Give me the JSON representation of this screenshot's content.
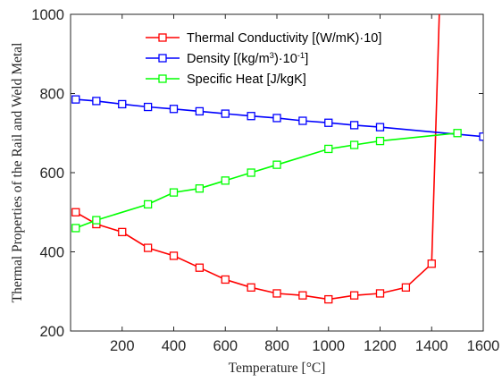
{
  "chart_data": {
    "type": "line",
    "xlabel": "Temperature [°C]",
    "ylabel": "Thermal Properties of the Rail and Weld Metal",
    "xlim": [
      0,
      1600
    ],
    "ylim": [
      200,
      1000
    ],
    "xticks": [
      200,
      400,
      600,
      800,
      1000,
      1200,
      1400,
      1600
    ],
    "yticks": [
      200,
      400,
      600,
      800,
      1000
    ],
    "grid": false,
    "legend_position": "top-right",
    "series": [
      {
        "name": "Thermal Conductivity [(W/mK)·10]",
        "legend_parts": [
          {
            "t": "Thermal Conductivity [(W/mK)·10]"
          }
        ],
        "color": "#ff0000",
        "marker": "square",
        "x": [
          20,
          100,
          200,
          300,
          400,
          500,
          600,
          700,
          800,
          900,
          1000,
          1100,
          1200,
          1300,
          1400
        ],
        "y": [
          500,
          470,
          450,
          410,
          390,
          360,
          330,
          310,
          295,
          290,
          280,
          290,
          295,
          310,
          370
        ],
        "continuation_line": {
          "x": [
            1400,
            1430
          ],
          "y": [
            370,
            1000
          ]
        }
      },
      {
        "name": "Density [(kg/m3)·10-1]",
        "legend_parts": [
          {
            "t": "Density [(kg/m"
          },
          {
            "t": "3",
            "sup": true
          },
          {
            "t": ")·10"
          },
          {
            "t": "-1",
            "sup": true
          },
          {
            "t": "]"
          }
        ],
        "color": "#0000ff",
        "marker": "square",
        "x": [
          20,
          100,
          200,
          300,
          400,
          500,
          600,
          700,
          800,
          900,
          1000,
          1100,
          1200,
          1600
        ],
        "y": [
          785,
          781,
          773,
          766,
          761,
          755,
          749,
          743,
          738,
          731,
          726,
          720,
          715,
          691
        ]
      },
      {
        "name": "Specific Heat [J/kgK]",
        "legend_parts": [
          {
            "t": "Specific Heat [J/kgK]"
          }
        ],
        "color": "#00ff00",
        "marker": "square",
        "x": [
          20,
          100,
          300,
          400,
          500,
          600,
          700,
          800,
          1000,
          1100,
          1200,
          1500
        ],
        "y": [
          460,
          480,
          520,
          550,
          560,
          580,
          600,
          620,
          660,
          670,
          680,
          700
        ]
      }
    ]
  }
}
